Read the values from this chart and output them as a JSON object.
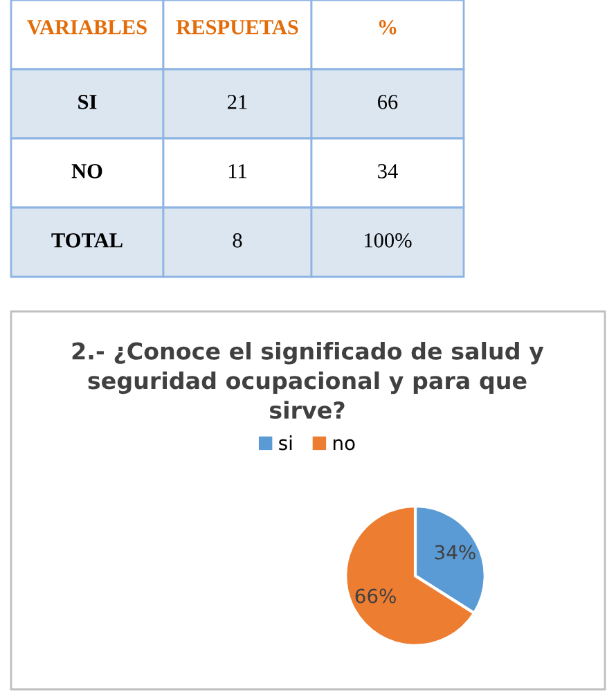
{
  "chart_data": [
    {
      "type": "other",
      "categories": [
        "VARIABLES",
        "RESPUETAS",
        "%"
      ],
      "y_categories": [
        "SI",
        "NO",
        "TOTAL"
      ],
      "cell_labels": [
        [
          "21",
          "66"
        ],
        [
          "11",
          "34"
        ],
        [
          "8",
          "100%"
        ]
      ]
    },
    {
      "type": "pie",
      "title": "2.- ¿Conoce el significado de salud y seguridad ocupacional y para que sirve?",
      "categories": [
        "si",
        "no"
      ],
      "values": [
        34,
        66
      ],
      "colors": [
        "#5b9bd5",
        "#ed7d31"
      ],
      "value_labels": [
        "34%",
        "66%"
      ],
      "legend": "top"
    }
  ]
}
